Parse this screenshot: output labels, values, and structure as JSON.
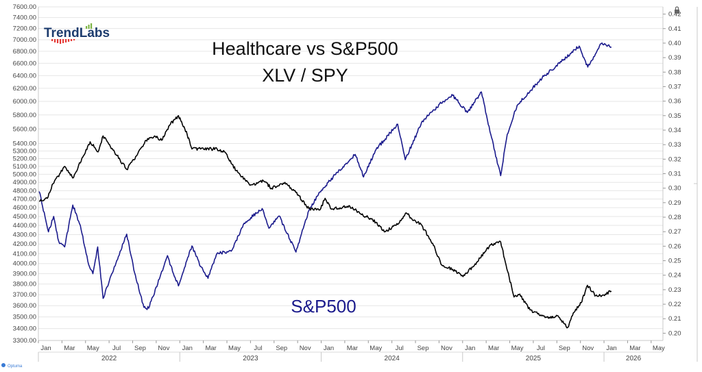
{
  "title": "Healthcare vs S&P500",
  "subtitle": "XLV / SPY",
  "series_label": "S&P500",
  "brand": {
    "name": "TrendLabs",
    "footer": "Optuma"
  },
  "colors": {
    "spx": "#1a1a8c",
    "ratio": "#000000",
    "brand_text": "#1d3c6e",
    "brand_bar_green": "#7cb342",
    "brand_bar_red": "#e53935",
    "grid": "#e6e6e6",
    "axis_text": "#444444"
  },
  "icons": {
    "lock": "lock-icon"
  },
  "chart_data": {
    "type": "line",
    "grid": true,
    "legend": "none",
    "x_axis": {
      "range": [
        "2022-01",
        "2026-06"
      ],
      "month_labels": [
        "Jan",
        "Mar",
        "May",
        "Jul",
        "Sep",
        "Nov",
        "Jan",
        "Mar",
        "May",
        "Jul",
        "Sep",
        "Nov",
        "Jan",
        "Mar",
        "May",
        "Jul",
        "Sep",
        "Nov",
        "Jan",
        "Mar",
        "May",
        "Jul",
        "Sep",
        "Nov",
        "Jan",
        "Mar",
        "May"
      ],
      "year_labels": [
        "2022",
        "2023",
        "2024",
        "2025",
        "2026"
      ]
    },
    "left_axis": {
      "scale": "log",
      "range": [
        3300,
        7600
      ],
      "ticks": [
        "7600.00",
        "7400.00",
        "7200.00",
        "7000.00",
        "6800.00",
        "6600.00",
        "6400.00",
        "6200.00",
        "6000.00",
        "5800.00",
        "5600.00",
        "5400.00",
        "5300.00",
        "5200.00",
        "5100.00",
        "5000.00",
        "4900.00",
        "4800.00",
        "4700.00",
        "4600.00",
        "4500.00",
        "4400.00",
        "4300.00",
        "4200.00",
        "4100.00",
        "4000.00",
        "3900.00",
        "3800.00",
        "3700.00",
        "3600.00",
        "3500.00",
        "3400.00",
        "3300.00"
      ]
    },
    "right_axis": {
      "range": [
        0.195,
        0.425
      ],
      "ticks": [
        "0.42",
        "0.41",
        "0.40",
        "0.39",
        "0.38",
        "0.37",
        "0.36",
        "0.35",
        "0.34",
        "0.33",
        "0.32",
        "0.31",
        "0.30",
        "0.29",
        "0.28",
        "0.27",
        "0.26",
        "0.25",
        "0.24",
        "0.23",
        "0.22",
        "0.21",
        "0.20"
      ]
    },
    "series": [
      {
        "name": "S&P500",
        "axis": "left",
        "points": [
          [
            "2022-01-03",
            4790
          ],
          [
            "2022-01-27",
            4330
          ],
          [
            "2022-02-10",
            4500
          ],
          [
            "2022-02-23",
            4230
          ],
          [
            "2022-03-08",
            4170
          ],
          [
            "2022-03-29",
            4630
          ],
          [
            "2022-04-18",
            4400
          ],
          [
            "2022-05-09",
            3990
          ],
          [
            "2022-05-20",
            3900
          ],
          [
            "2022-06-02",
            4170
          ],
          [
            "2022-06-16",
            3666
          ],
          [
            "2022-07-08",
            3900
          ],
          [
            "2022-08-16",
            4305
          ],
          [
            "2022-09-06",
            3910
          ],
          [
            "2022-09-30",
            3585
          ],
          [
            "2022-10-12",
            3577
          ],
          [
            "2022-11-30",
            4080
          ],
          [
            "2022-12-15",
            3900
          ],
          [
            "2022-12-28",
            3783
          ],
          [
            "2023-02-02",
            4180
          ],
          [
            "2023-02-24",
            3970
          ],
          [
            "2023-03-13",
            3855
          ],
          [
            "2023-04-06",
            4105
          ],
          [
            "2023-05-12",
            4125
          ],
          [
            "2023-06-15",
            4425
          ],
          [
            "2023-07-31",
            4590
          ],
          [
            "2023-08-18",
            4370
          ],
          [
            "2023-09-14",
            4505
          ],
          [
            "2023-10-27",
            4117
          ],
          [
            "2023-11-30",
            4567
          ],
          [
            "2023-12-28",
            4783
          ],
          [
            "2024-02-12",
            5025
          ],
          [
            "2024-03-28",
            5254
          ],
          [
            "2024-04-19",
            4967
          ],
          [
            "2024-05-21",
            5321
          ],
          [
            "2024-07-16",
            5667
          ],
          [
            "2024-08-05",
            5186
          ],
          [
            "2024-09-19",
            5713
          ],
          [
            "2024-11-11",
            6001
          ],
          [
            "2024-12-06",
            6090
          ],
          [
            "2025-01-13",
            5836
          ],
          [
            "2025-02-19",
            6144
          ],
          [
            "2025-03-13",
            5521
          ],
          [
            "2025-04-08",
            4982
          ],
          [
            "2025-04-25",
            5525
          ],
          [
            "2025-05-20",
            5940
          ],
          [
            "2025-06-30",
            6205
          ],
          [
            "2025-07-28",
            6389
          ],
          [
            "2025-09-19",
            6664
          ],
          [
            "2025-10-28",
            6890
          ],
          [
            "2025-11-20",
            6538
          ],
          [
            "2025-12-24",
            6932
          ],
          [
            "2026-01-20",
            6875
          ]
        ]
      },
      {
        "name": "XLV / SPY",
        "axis": "right",
        "points": [
          [
            "2022-01-03",
            0.291
          ],
          [
            "2022-01-24",
            0.293
          ],
          [
            "2022-02-08",
            0.303
          ],
          [
            "2022-03-08",
            0.315
          ],
          [
            "2022-03-29",
            0.307
          ],
          [
            "2022-05-13",
            0.332
          ],
          [
            "2022-06-03",
            0.325
          ],
          [
            "2022-06-16",
            0.336
          ],
          [
            "2022-07-15",
            0.325
          ],
          [
            "2022-08-16",
            0.313
          ],
          [
            "2022-09-13",
            0.323
          ],
          [
            "2022-10-05",
            0.333
          ],
          [
            "2022-10-27",
            0.336
          ],
          [
            "2022-11-15",
            0.333
          ],
          [
            "2022-12-07",
            0.344
          ],
          [
            "2022-12-28",
            0.35
          ],
          [
            "2023-01-20",
            0.337
          ],
          [
            "2023-02-02",
            0.327
          ],
          [
            "2023-02-24",
            0.327
          ],
          [
            "2023-04-06",
            0.327
          ],
          [
            "2023-04-25",
            0.325
          ],
          [
            "2023-05-25",
            0.312
          ],
          [
            "2023-06-30",
            0.302
          ],
          [
            "2023-08-04",
            0.305
          ],
          [
            "2023-08-25",
            0.3
          ],
          [
            "2023-09-29",
            0.304
          ],
          [
            "2023-10-27",
            0.297
          ],
          [
            "2023-11-30",
            0.286
          ],
          [
            "2023-12-28",
            0.285
          ],
          [
            "2024-01-11",
            0.293
          ],
          [
            "2024-01-25",
            0.286
          ],
          [
            "2024-02-15",
            0.286
          ],
          [
            "2024-03-12",
            0.288
          ],
          [
            "2024-04-18",
            0.281
          ],
          [
            "2024-05-10",
            0.279
          ],
          [
            "2024-06-14",
            0.27
          ],
          [
            "2024-07-16",
            0.275
          ],
          [
            "2024-08-07",
            0.283
          ],
          [
            "2024-09-04",
            0.276
          ],
          [
            "2024-09-13",
            0.276
          ],
          [
            "2024-10-15",
            0.262
          ],
          [
            "2024-11-08",
            0.247
          ],
          [
            "2024-12-06",
            0.244
          ],
          [
            "2025-01-02",
            0.239
          ],
          [
            "2025-02-07",
            0.249
          ],
          [
            "2025-03-13",
            0.261
          ],
          [
            "2025-04-08",
            0.263
          ],
          [
            "2025-04-22",
            0.247
          ],
          [
            "2025-05-12",
            0.225
          ],
          [
            "2025-05-27",
            0.227
          ],
          [
            "2025-06-23",
            0.216
          ],
          [
            "2025-07-23",
            0.212
          ],
          [
            "2025-08-12",
            0.211
          ],
          [
            "2025-09-04",
            0.212
          ],
          [
            "2025-09-29",
            0.204
          ],
          [
            "2025-10-13",
            0.214
          ],
          [
            "2025-11-03",
            0.221
          ],
          [
            "2025-11-19",
            0.233
          ],
          [
            "2025-12-10",
            0.226
          ],
          [
            "2025-12-26",
            0.226
          ],
          [
            "2026-01-20",
            0.229
          ]
        ]
      }
    ]
  }
}
